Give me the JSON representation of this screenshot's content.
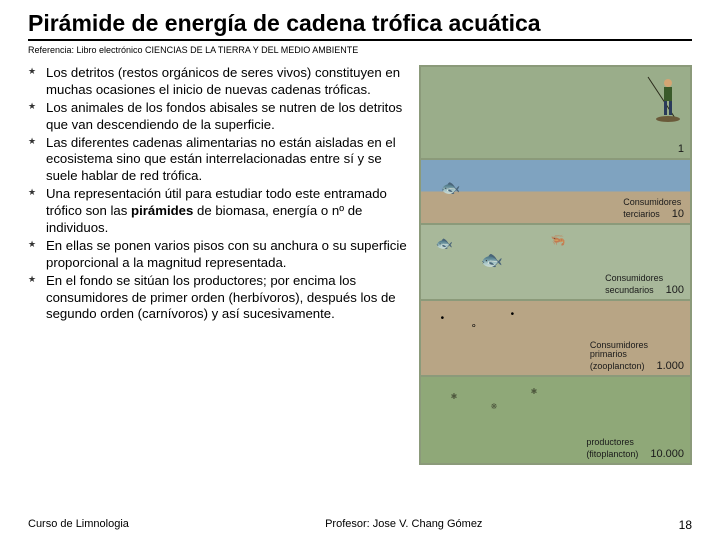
{
  "title": "Pirámide de energía de cadena trófica acuática",
  "reference": "Referencia: Libro electrónico CIENCIAS DE LA TIERRA Y DEL MEDIO AMBIENTE",
  "bullets": [
    "Los detritos (restos orgánicos de seres vivos) constituyen en muchas ocasiones el inicio de nuevas cadenas tróficas.",
    "Los animales de los fondos abisales se nutren de los detritos que van descendiendo de la superficie.",
    "Las diferentes cadenas alimentarias no están aisladas en el ecosistema sino que están interrelacionadas entre sí y se suele hablar de red trófica.",
    "Una representación útil para estudiar todo este entramado trófico son las <b>pirámides</b> de biomasa, energía o nº de individuos.",
    "En ellas se ponen varios pisos con su anchura o su superficie proporcional a la magnitud representada.",
    "En el fondo se sitúan los productores; por encima los consumidores de primer orden (herbívoros), después los de segundo orden (carnívoros) y así sucesivamente."
  ],
  "pyramid": {
    "levels": [
      {
        "label": "",
        "value": "1"
      },
      {
        "label": "Consumidores<br>terciarios",
        "value": "10"
      },
      {
        "label": "Consumidores<br>secundarios",
        "value": "100"
      },
      {
        "label": "Consumidores<br>primarios<br>(zooplancton)",
        "value": "1.000"
      },
      {
        "label": "productores<br>(fitoplancton)",
        "value": "10.000"
      }
    ],
    "level_bg_colors": [
      "#9aad8a",
      "#8fb5d0",
      "#a8b89a",
      "#b8a585",
      "#8fa878"
    ],
    "border_color": "#8b9a7a"
  },
  "footer": {
    "left": "Curso de Limnologia",
    "center": "Profesor: Jose V. Chang Gómez",
    "page": "18"
  }
}
